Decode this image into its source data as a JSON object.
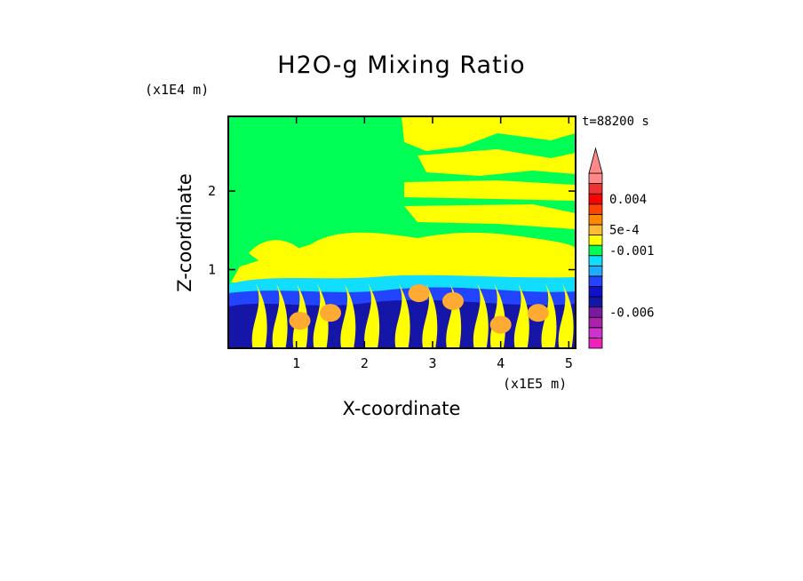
{
  "chart_data": {
    "type": "heatmap",
    "title": "H2O-g Mixing Ratio",
    "xlabel": "X-coordinate",
    "ylabel": "Z-coordinate",
    "x_unit": "(x1E5 m)",
    "y_unit": "(x1E4 m)",
    "time_label": "t=88200 s",
    "xlim": [
      0,
      5.1
    ],
    "ylim": [
      0,
      2.95
    ],
    "x_ticks": [
      1,
      2,
      3,
      4,
      5
    ],
    "y_ticks": [
      1,
      2
    ],
    "colorbar": {
      "levels": [
        {
          "color": "#ee22bb"
        },
        {
          "color": "#cc33cc"
        },
        {
          "color": "#aa22aa"
        },
        {
          "color": "#7a1a9e"
        },
        {
          "color": "#1515a8"
        },
        {
          "color": "#1111cc"
        },
        {
          "color": "#2244ff"
        },
        {
          "color": "#22aaff"
        },
        {
          "color": "#11ddff"
        },
        {
          "color": "#00ff55"
        },
        {
          "color": "#ffff00"
        },
        {
          "color": "#ffbb33"
        },
        {
          "color": "#ff8800"
        },
        {
          "color": "#ff4400"
        },
        {
          "color": "#ff0000"
        },
        {
          "color": "#ee3333"
        },
        {
          "color": "#ff8888"
        }
      ],
      "labels": [
        {
          "text": "0.004",
          "at_level": 14
        },
        {
          "text": "5e-4",
          "at_level": 11
        },
        {
          "text": "-0.001",
          "at_level": 9
        },
        {
          "text": "-0.006",
          "at_level": 3
        }
      ],
      "extend_top": true
    },
    "field_colors": {
      "background": "#00ff55",
      "moist": "#ffff00",
      "peak": "#ffaa33",
      "low_cyan": "#11ddff",
      "low_blue": "#2244ff",
      "low_navy": "#1515a8"
    }
  }
}
